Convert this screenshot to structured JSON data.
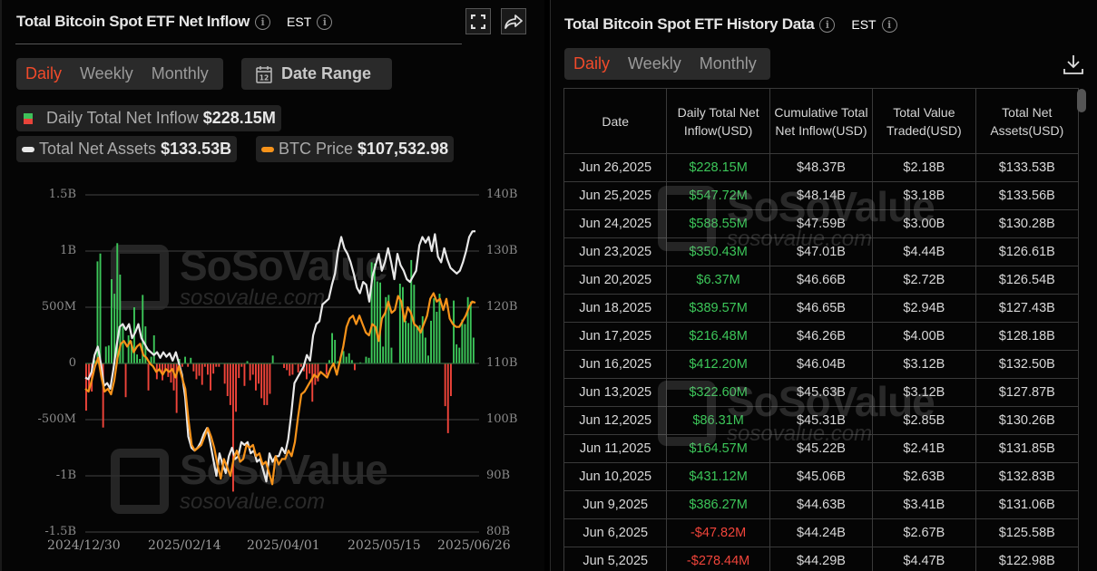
{
  "left_panel": {
    "title": "Total Bitcoin Spot ETF Net Inflow",
    "timezone": "EST",
    "period_tabs": [
      "Daily",
      "Weekly",
      "Monthly"
    ],
    "active_tab": "Daily",
    "date_range_label": "Date Range",
    "calendar_day": "12",
    "legend": {
      "inflow_label": "Daily Total Net Inflow",
      "inflow_value": "$228.15M",
      "assets_label": "Total Net Assets",
      "assets_value": "$133.53B",
      "price_label": "BTC Price",
      "price_value": "$107,532.98"
    },
    "icons": [
      "fullscreen-icon",
      "share-icon",
      "info-icon",
      "calendar-icon"
    ],
    "watermark": {
      "brand": "SoSoValue",
      "url": "sosovalue.com"
    }
  },
  "colors": {
    "positive": "#3cc659",
    "negative": "#f0443a",
    "active_tab": "#f04a2a",
    "btc_price": "#f7931a",
    "net_assets": "#e8e8e8"
  },
  "chart_data": {
    "type": "bar",
    "title": "Total Bitcoin Spot ETF Net Inflow",
    "x_tick_labels": [
      "2024/12/30",
      "2025/02/14",
      "2025/04/01",
      "2025/05/15",
      "2025/06/26"
    ],
    "left_axis": {
      "label": "Daily Total Net Inflow",
      "ticks": [
        "1.5B",
        "1B",
        "500M",
        "0",
        "-500M",
        "-1B",
        "-1.5B"
      ],
      "range": [
        -1500,
        1500
      ],
      "unit": "M USD"
    },
    "right_axis": {
      "label": "Total Net Assets",
      "ticks": [
        "140B",
        "130B",
        "120B",
        "110B",
        "100B",
        "90B",
        "80B"
      ],
      "range": [
        80,
        140
      ],
      "unit": "B USD"
    },
    "grid": true,
    "series": [
      {
        "name": "Daily Total Net Inflow",
        "type": "bar",
        "values": [
          -420,
          -240,
          -250,
          30,
          908,
          978,
          -570,
          150,
          160,
          750,
          620,
          1070,
          790,
          330,
          -300,
          250,
          200,
          500,
          80,
          40,
          610,
          330,
          -240,
          60,
          250,
          -140,
          -70,
          -150,
          -70,
          -120,
          -170,
          -240,
          -440,
          40,
          -30,
          60,
          -30,
          50,
          -70,
          -140,
          -110,
          -190,
          -30,
          -100,
          -240,
          -90,
          -30,
          -30,
          0,
          -180,
          -290,
          -370,
          -1140,
          -430,
          -130,
          -30,
          -200,
          20,
          -150,
          -100,
          -240,
          -180,
          -310,
          -370,
          -370,
          -270,
          70,
          0,
          0,
          0,
          -40,
          -60,
          -110,
          -100,
          -10,
          -80,
          -30,
          -70,
          -140,
          -90,
          -340,
          -190,
          -160,
          0,
          0,
          -100,
          30,
          270,
          210,
          20,
          60,
          110,
          60,
          90,
          30,
          -60,
          0,
          10,
          0,
          60,
          50,
          900,
          890,
          730,
          720,
          150,
          590,
          610,
          140,
          0,
          0,
          710,
          680,
          380,
          360,
          920,
          700,
          330,
          340,
          420,
          230,
          70,
          380,
          580,
          460,
          620,
          0,
          -380,
          -620,
          -290,
          560,
          170,
          140,
          390,
          350,
          590,
          550,
          230
        ],
        "color_positive": "#3cc659",
        "color_negative": "#f0443a"
      },
      {
        "name": "Total Net Assets",
        "type": "line",
        "color": "#e8e8e8",
        "values": [
          107.5,
          107.2,
          108.5,
          111.5,
          113.0,
          110.0,
          106.0,
          106.5,
          105.5,
          109.0,
          113.0,
          116.5,
          117.0,
          116.0,
          117.0,
          114.5,
          115.5,
          117.0,
          114.5,
          113.5,
          112.5,
          112.0,
          111.5,
          112.0,
          111.0,
          112.0,
          111.2,
          111.8,
          110.5,
          112.0,
          110.0,
          108.0,
          104.0,
          97.0,
          95.0,
          94.5,
          95.0,
          96.0,
          97.5,
          98.5,
          96.0,
          93.0,
          90.0,
          94.0,
          92.0,
          90.5,
          93.5,
          95.0,
          93.0,
          93.5,
          96.0,
          95.5,
          96.0,
          94.0,
          94.5,
          92.5,
          93.0,
          91.0,
          89.0,
          94.0,
          92.5,
          93.5,
          93.5,
          95.0,
          94.0,
          96.5,
          101.0,
          106.5,
          107.5,
          108.5,
          109.5,
          111.5,
          110.5,
          115.0,
          117.0,
          117.5,
          120.5,
          121.0,
          121.5,
          124.0,
          126.0,
          130.0,
          132.5,
          130.5,
          129.5,
          128.0,
          126.0,
          123.5,
          122.5,
          124.5,
          124.0,
          121.0,
          125.5,
          127.5,
          129.5,
          126.5,
          128.0,
          130.5,
          128.0,
          125.0,
          129.5,
          127.5,
          126.5,
          125.0,
          124.5,
          125.5,
          126.5,
          131.0,
          132.5,
          131.5,
          132.5,
          130.0,
          133.0,
          129.0,
          128.0,
          130.5,
          128.5,
          127.0,
          126.5,
          126.0,
          126.5,
          128.0,
          130.0,
          132.5,
          133.5,
          133.53
        ]
      },
      {
        "name": "BTC Price",
        "type": "line",
        "color": "#f7931a",
        "values": [
          105.5,
          105.0,
          107.0,
          109.5,
          111.0,
          107.5,
          105.0,
          105.5,
          104.5,
          107.0,
          111.0,
          113.5,
          114.0,
          113.0,
          114.0,
          112.0,
          113.0,
          113.5,
          111.5,
          111.0,
          110.0,
          109.5,
          108.5,
          109.0,
          108.0,
          109.0,
          108.5,
          109.0,
          107.5,
          109.5,
          107.5,
          105.5,
          100.0,
          95.5,
          94.5,
          95.0,
          95.5,
          97.0,
          98.5,
          97.0,
          95.0,
          92.0,
          89.5,
          93.0,
          91.5,
          90.0,
          93.0,
          94.5,
          92.5,
          93.0,
          95.5,
          95.0,
          95.5,
          93.5,
          94.0,
          92.0,
          92.5,
          90.5,
          88.5,
          93.5,
          92.0,
          93.0,
          93.0,
          94.5,
          93.5,
          96.0,
          100.5,
          104.5,
          105.0,
          106.0,
          107.0,
          108.0,
          107.5,
          108.5,
          108.0,
          107.5,
          109.0,
          110.0,
          108.0,
          110.5,
          113.0,
          116.5,
          118.0,
          118.5,
          117.0,
          118.5,
          117.0,
          115.5,
          115.0,
          117.0,
          116.5,
          114.0,
          118.0,
          119.0,
          121.0,
          119.0,
          119.5,
          122.0,
          121.0,
          117.5,
          120.0,
          119.0,
          117.0,
          116.5,
          115.5,
          117.0,
          118.5,
          121.5,
          122.5,
          121.0,
          121.5,
          119.5,
          121.5,
          118.0,
          117.0,
          116.5,
          116.5,
          117.5,
          118.5,
          120.0,
          121.0,
          120.8
        ]
      }
    ]
  },
  "right_panel": {
    "title": "Total Bitcoin Spot ETF History Data",
    "timezone": "EST",
    "period_tabs": [
      "Daily",
      "Weekly",
      "Monthly"
    ],
    "active_tab": "Daily",
    "download_icon": "download-icon",
    "columns": [
      "Date",
      "Daily Total Net Inflow(USD)",
      "Cumulative Total Net Inflow(USD)",
      "Total Value Traded(USD)",
      "Total Net Assets(USD)"
    ],
    "rows": [
      {
        "date": "Jun 26,2025",
        "inflow": "$228.15M",
        "cumulative": "$48.37B",
        "traded": "$2.18B",
        "assets": "$133.53B",
        "sign": "pos"
      },
      {
        "date": "Jun 25,2025",
        "inflow": "$547.72M",
        "cumulative": "$48.14B",
        "traded": "$3.18B",
        "assets": "$133.56B",
        "sign": "pos"
      },
      {
        "date": "Jun 24,2025",
        "inflow": "$588.55M",
        "cumulative": "$47.59B",
        "traded": "$3.00B",
        "assets": "$130.28B",
        "sign": "pos"
      },
      {
        "date": "Jun 23,2025",
        "inflow": "$350.43M",
        "cumulative": "$47.01B",
        "traded": "$4.44B",
        "assets": "$126.61B",
        "sign": "pos"
      },
      {
        "date": "Jun 20,2025",
        "inflow": "$6.37M",
        "cumulative": "$46.66B",
        "traded": "$2.72B",
        "assets": "$126.54B",
        "sign": "pos"
      },
      {
        "date": "Jun 18,2025",
        "inflow": "$389.57M",
        "cumulative": "$46.65B",
        "traded": "$2.94B",
        "assets": "$127.43B",
        "sign": "pos"
      },
      {
        "date": "Jun 17,2025",
        "inflow": "$216.48M",
        "cumulative": "$46.26B",
        "traded": "$4.00B",
        "assets": "$128.18B",
        "sign": "pos"
      },
      {
        "date": "Jun 16,2025",
        "inflow": "$412.20M",
        "cumulative": "$46.04B",
        "traded": "$3.12B",
        "assets": "$132.50B",
        "sign": "pos"
      },
      {
        "date": "Jun 13,2025",
        "inflow": "$322.60M",
        "cumulative": "$45.63B",
        "traded": "$3.12B",
        "assets": "$127.87B",
        "sign": "pos"
      },
      {
        "date": "Jun 12,2025",
        "inflow": "$86.31M",
        "cumulative": "$45.31B",
        "traded": "$2.85B",
        "assets": "$130.26B",
        "sign": "pos"
      },
      {
        "date": "Jun 11,2025",
        "inflow": "$164.57M",
        "cumulative": "$45.22B",
        "traded": "$2.41B",
        "assets": "$131.85B",
        "sign": "pos"
      },
      {
        "date": "Jun 10,2025",
        "inflow": "$431.12M",
        "cumulative": "$45.06B",
        "traded": "$2.63B",
        "assets": "$132.83B",
        "sign": "pos"
      },
      {
        "date": "Jun 9,2025",
        "inflow": "$386.27M",
        "cumulative": "$44.63B",
        "traded": "$3.41B",
        "assets": "$131.06B",
        "sign": "pos"
      },
      {
        "date": "Jun 6,2025",
        "inflow": "-$47.82M",
        "cumulative": "$44.24B",
        "traded": "$2.67B",
        "assets": "$125.58B",
        "sign": "neg"
      },
      {
        "date": "Jun 5,2025",
        "inflow": "-$278.44M",
        "cumulative": "$44.29B",
        "traded": "$4.47B",
        "assets": "$122.98B",
        "sign": "neg"
      }
    ]
  }
}
